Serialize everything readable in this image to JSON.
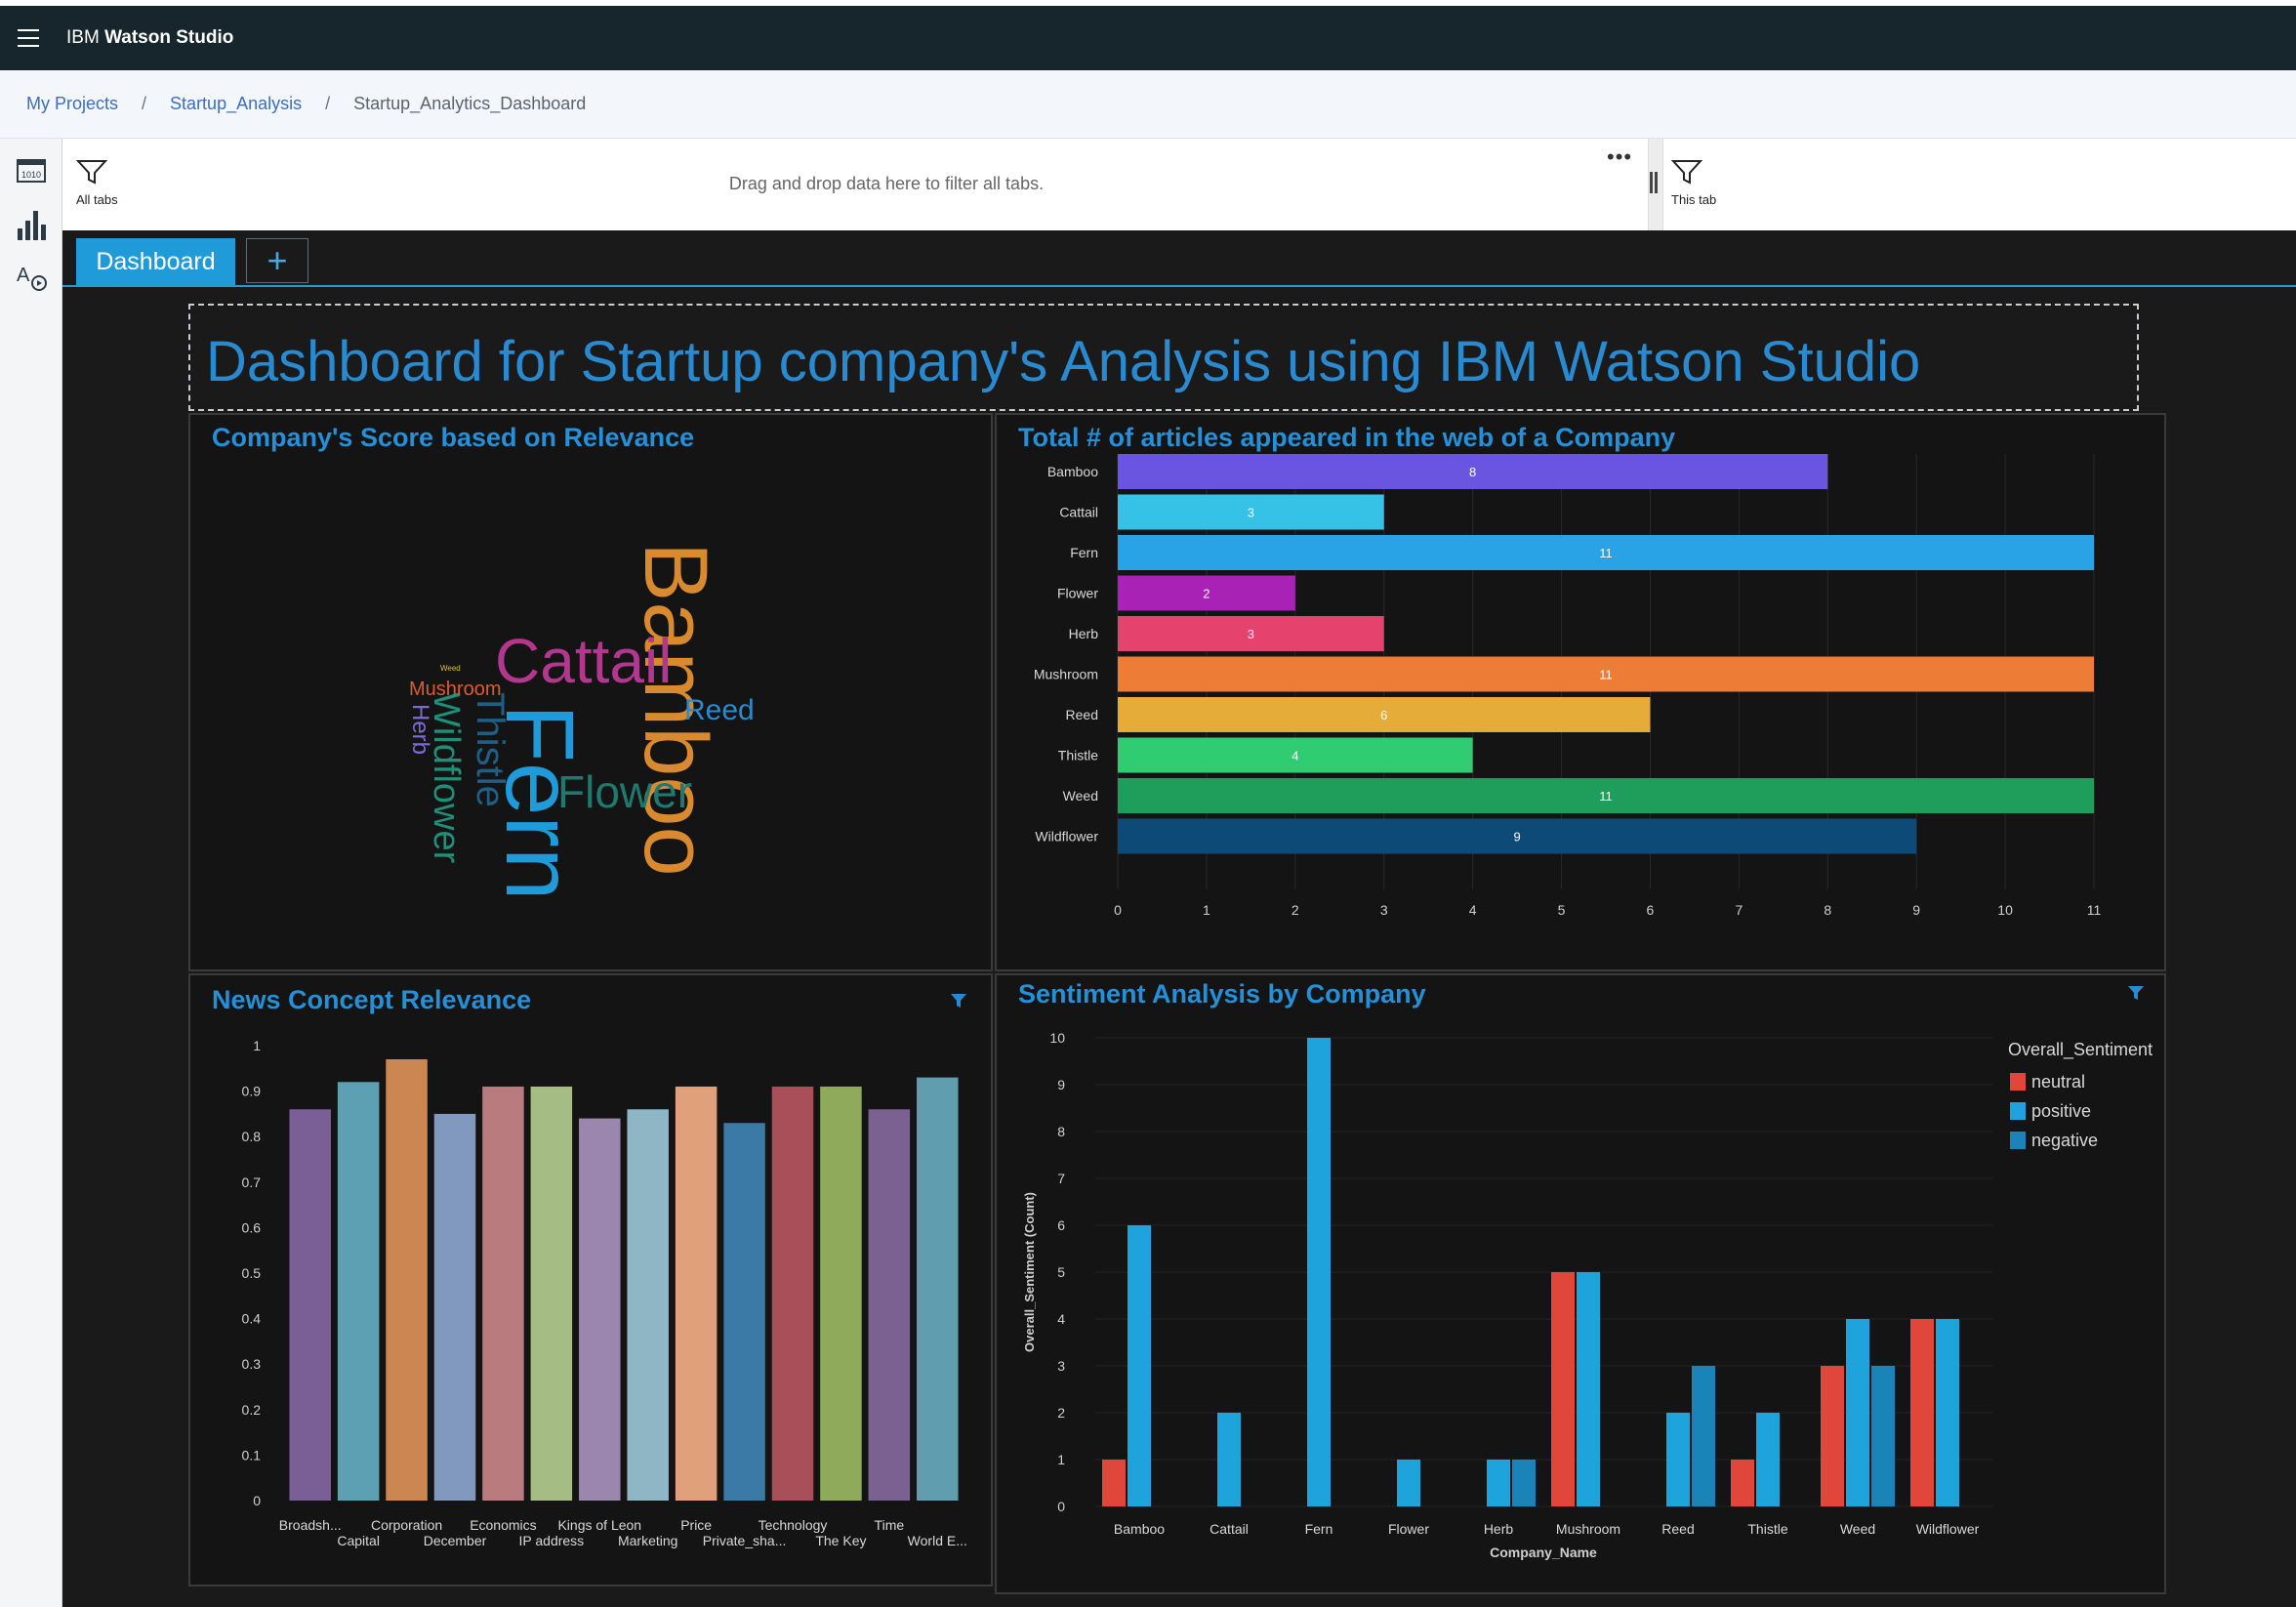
{
  "app": {
    "title_prefix": "IBM",
    "title_bold": "Watson Studio"
  },
  "breadcrumb": {
    "items": [
      "My Projects",
      "Startup_Analysis"
    ],
    "current": "Startup_Analytics_Dashboard",
    "separator": "/"
  },
  "filterbar": {
    "all_tabs_label": "All tabs",
    "drop_hint": "Drag and drop data here to filter all tabs.",
    "this_tab_label": "This tab"
  },
  "tabs": {
    "active_label": "Dashboard",
    "add_label": "+"
  },
  "dashboard_title": "Dashboard for Startup company's Analysis using IBM Watson Studio",
  "panels": {
    "wordcloud_title": "Company's Score based on Relevance",
    "articles_title": "Total # of articles appeared in the web of a Company",
    "news_title": "News Concept Relevance",
    "sentiment_title": "Sentiment Analysis by Company"
  },
  "icons": {
    "menu": "hamburger-icon",
    "filter": "filter-icon",
    "data": "data-icon",
    "viz": "bar-chart-icon",
    "text": "text-style-icon",
    "more": "more-options-icon"
  },
  "chart_data": [
    {
      "type": "wordcloud",
      "title": "Company's Score based on Relevance",
      "words": [
        {
          "text": "Bamboo",
          "color": "#d98a2e"
        },
        {
          "text": "Cattail",
          "color": "#b3378f"
        },
        {
          "text": "Fern",
          "color": "#1f9bd9"
        },
        {
          "text": "Flower",
          "color": "#1e7a6e"
        },
        {
          "text": "Thistle",
          "color": "#1f5f86"
        },
        {
          "text": "Wildflower",
          "color": "#1d8f7a"
        },
        {
          "text": "Reed",
          "color": "#2a8ad0"
        },
        {
          "text": "Mushroom",
          "color": "#e05a2b"
        },
        {
          "text": "Herb",
          "color": "#7c6bd6"
        },
        {
          "text": "Weed",
          "color": "#d8c12e"
        }
      ]
    },
    {
      "type": "bar",
      "orientation": "horizontal",
      "title": "Total # of articles appeared in the web of a Company",
      "categories": [
        "Bamboo",
        "Cattail",
        "Fern",
        "Flower",
        "Herb",
        "Mushroom",
        "Reed",
        "Thistle",
        "Weed",
        "Wildflower"
      ],
      "values": [
        8,
        3,
        11,
        2,
        3,
        11,
        6,
        4,
        11,
        9
      ],
      "colors": [
        "#6a55e0",
        "#36c1e6",
        "#2aa3e6",
        "#a922b6",
        "#e6426e",
        "#ec7c36",
        "#e6ac3a",
        "#2fcc72",
        "#1f9d5a",
        "#0e4a78"
      ],
      "xlim": [
        0,
        11
      ],
      "xticks": [
        0,
        1,
        2,
        3,
        4,
        5,
        6,
        7,
        8,
        9,
        10,
        11
      ]
    },
    {
      "type": "bar",
      "title": "News Concept Relevance",
      "categories": [
        "Broadsh...",
        "Capital",
        "Corporation",
        "December",
        "Economics",
        "IP address",
        "Kings of Leon",
        "Marketing",
        "Price",
        "Private_sha...",
        "Technology",
        "The Key",
        "Time",
        "World E..."
      ],
      "values": [
        0.86,
        0.92,
        0.97,
        0.85,
        0.91,
        0.91,
        0.84,
        0.86,
        0.91,
        0.83,
        0.91,
        0.91,
        0.86,
        0.93
      ],
      "colors": [
        "#7a5f96",
        "#5d9fb3",
        "#cc8652",
        "#8299bf",
        "#b97b7e",
        "#a5bd84",
        "#9b86ae",
        "#8fb6c4",
        "#dfa07a",
        "#3b79a6",
        "#a84f59",
        "#8eaa5a",
        "#7b6191",
        "#5f9daf"
      ],
      "ylim": [
        0,
        1
      ],
      "yticks": [
        "0",
        "0.1",
        "0.2",
        "0.3",
        "0.4",
        "0.5",
        "0.6",
        "0.7",
        "0.8",
        "0.9",
        "1"
      ]
    },
    {
      "type": "bar",
      "title": "Sentiment Analysis by Company",
      "xlabel": "Company_Name",
      "ylabel": "Overall_Sentiment (Count)",
      "legend_title": "Overall_Sentiment",
      "legend_position": "top-right",
      "categories": [
        "Bamboo",
        "Cattail",
        "Fern",
        "Flower",
        "Herb",
        "Mushroom",
        "Reed",
        "Thistle",
        "Weed",
        "Wildflower"
      ],
      "series": [
        {
          "name": "neutral",
          "color": "#e0473a",
          "values": [
            1,
            0,
            0,
            0,
            0,
            5,
            0,
            1,
            3,
            4
          ]
        },
        {
          "name": "positive",
          "color": "#1fa3dc",
          "values": [
            6,
            2,
            10,
            1,
            1,
            5,
            2,
            2,
            4,
            4
          ]
        },
        {
          "name": "negative",
          "color": "#1a84b8",
          "values": [
            0,
            0,
            0,
            0,
            1,
            0,
            3,
            0,
            3,
            0
          ]
        }
      ],
      "ylim": [
        0,
        10
      ],
      "yticks": [
        0,
        1,
        2,
        3,
        4,
        5,
        6,
        7,
        8,
        9,
        10
      ]
    }
  ]
}
